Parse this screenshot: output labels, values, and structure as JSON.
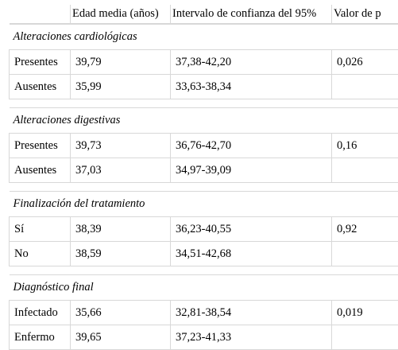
{
  "headers": [
    "",
    "Edad media (años)",
    "Intervalo de confianza del 95%",
    "Valor de p"
  ],
  "sections": [
    {
      "title": "Alteraciones cardiológicas",
      "rows": [
        {
          "label": "Presentes",
          "mean": "39,79",
          "ci": "37,38-42,20",
          "p": "0,026"
        },
        {
          "label": "Ausentes",
          "mean": "35,99",
          "ci": "33,63-38,34",
          "p": ""
        }
      ]
    },
    {
      "title": "Alteraciones digestivas",
      "rows": [
        {
          "label": "Presentes",
          "mean": "39,73",
          "ci": "36,76-42,70",
          "p": "0,16"
        },
        {
          "label": "Ausentes",
          "mean": "37,03",
          "ci": "34,97-39,09",
          "p": ""
        }
      ]
    },
    {
      "title": "Finalización del tratamiento",
      "rows": [
        {
          "label": "Sí",
          "mean": "38,39",
          "ci": "36,23-40,55",
          "p": "0,92"
        },
        {
          "label": "No",
          "mean": "38,59",
          "ci": "34,51-42,68",
          "p": ""
        }
      ]
    },
    {
      "title": "Diagnóstico final",
      "rows": [
        {
          "label": "Infectado",
          "mean": "35,66",
          "ci": "32,81-38,54",
          "p": "0,019"
        },
        {
          "label": "Enfermo",
          "mean": "39,65",
          "ci": "37,23-41,33",
          "p": ""
        }
      ]
    }
  ]
}
